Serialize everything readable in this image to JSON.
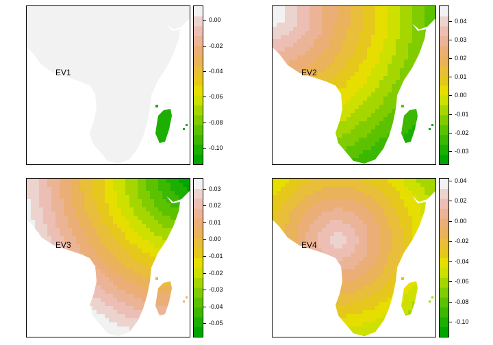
{
  "colors": {
    "palette": [
      "#00A600",
      "#1CAE00",
      "#3CB800",
      "#5CC200",
      "#80CC00",
      "#A6D600",
      "#CEE000",
      "#E6DE00",
      "#E6C81C",
      "#E8BE3A",
      "#EAB25A",
      "#EBAE77",
      "#ECB497",
      "#EDBFB4",
      "#EDD3CE",
      "#F2F2F2"
    ],
    "background": "#ffffff",
    "frame": "#000000"
  },
  "panels": [
    {
      "label": "EV1",
      "range": [
        -0.113,
        0.011
      ],
      "ticks": [
        {
          "value": 0.0,
          "text": "0.00"
        },
        {
          "value": -0.02,
          "text": "-0.02"
        },
        {
          "value": -0.04,
          "text": "-0.04"
        },
        {
          "value": -0.06,
          "text": "-0.06"
        },
        {
          "value": -0.08,
          "text": "-0.08"
        },
        {
          "value": -0.1,
          "text": "-0.10"
        }
      ],
      "pattern": "uniform-madagascar"
    },
    {
      "label": "EV2",
      "range": [
        -0.037,
        0.048
      ],
      "ticks": [
        {
          "value": 0.04,
          "text": "0.04"
        },
        {
          "value": 0.03,
          "text": "0.03"
        },
        {
          "value": 0.02,
          "text": "0.02"
        },
        {
          "value": 0.01,
          "text": "0.01"
        },
        {
          "value": 0.0,
          "text": "0.00"
        },
        {
          "value": -0.01,
          "text": "-0.01"
        },
        {
          "value": -0.02,
          "text": "-0.02"
        },
        {
          "value": -0.03,
          "text": "-0.03"
        }
      ],
      "pattern": "northwest-to-south"
    },
    {
      "label": "EV3",
      "range": [
        -0.058,
        0.036
      ],
      "ticks": [
        {
          "value": 0.03,
          "text": "0.03"
        },
        {
          "value": 0.02,
          "text": "0.02"
        },
        {
          "value": 0.01,
          "text": "0.01"
        },
        {
          "value": 0.0,
          "text": "0.00"
        },
        {
          "value": -0.01,
          "text": "-0.01"
        },
        {
          "value": -0.02,
          "text": "-0.02"
        },
        {
          "value": -0.03,
          "text": "-0.03"
        },
        {
          "value": -0.04,
          "text": "-0.04"
        },
        {
          "value": -0.05,
          "text": "-0.05"
        }
      ],
      "pattern": "northeast-low"
    },
    {
      "label": "EV4",
      "range": [
        -0.115,
        0.042
      ],
      "ticks": [
        {
          "value": 0.04,
          "text": "0.04"
        },
        {
          "value": 0.02,
          "text": "0.02"
        },
        {
          "value": 0.0,
          "text": "0.00"
        },
        {
          "value": -0.02,
          "text": "-0.02"
        },
        {
          "value": -0.04,
          "text": "-0.04"
        },
        {
          "value": -0.06,
          "text": "-0.06"
        },
        {
          "value": -0.08,
          "text": "-0.08"
        },
        {
          "value": -0.1,
          "text": "-0.10"
        }
      ],
      "pattern": "center-high-edges-low"
    }
  ]
}
